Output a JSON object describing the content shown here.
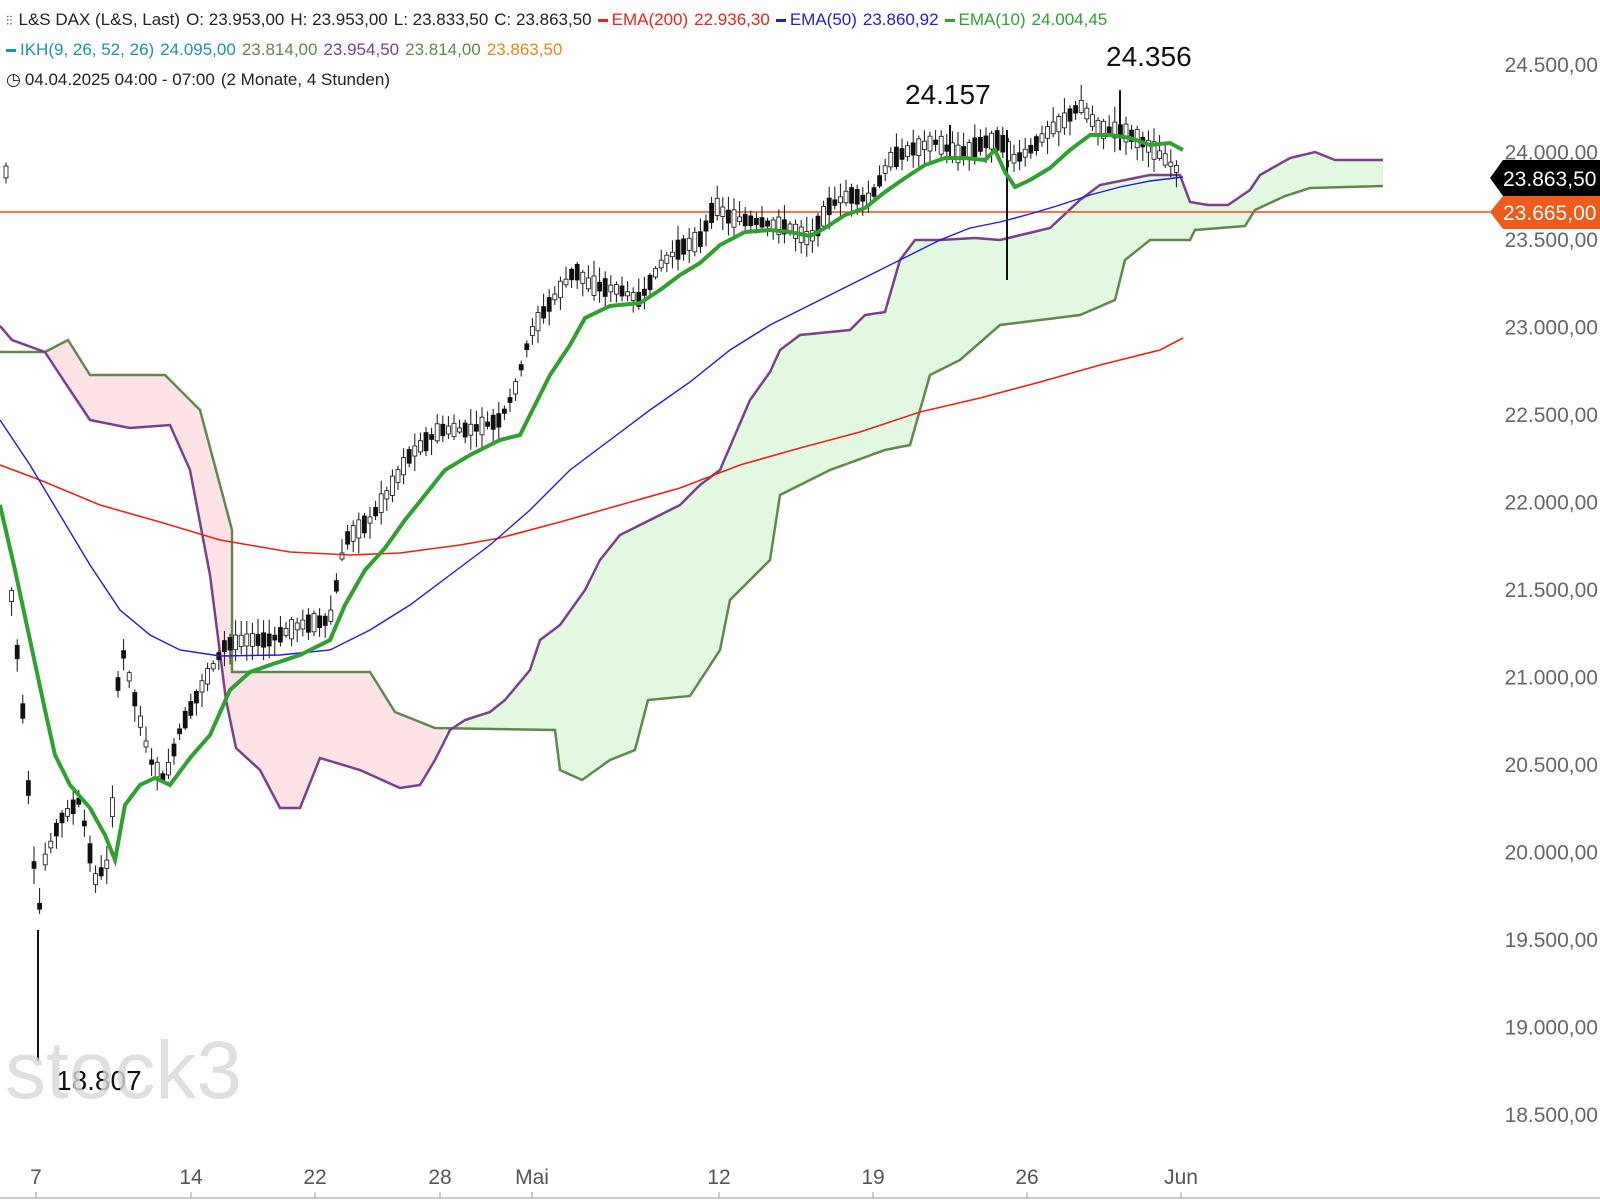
{
  "header": {
    "line1": {
      "instrument": "L&S DAX (L&S, Last)",
      "open": "O: 23.953,00",
      "high": "H: 23.953,00",
      "low": "L: 23.833,50",
      "close": "C: 23.863,50",
      "ema200_label": "EMA(200)",
      "ema200_value": "22.936,30",
      "ema50_label": "EMA(50)",
      "ema50_value": "23.860,92",
      "ema10_label": "EMA(10)",
      "ema10_value": "24.004,45"
    },
    "line2": {
      "ikh_label": "IKH(9, 26, 52, 26)",
      "v1": "24.095,00",
      "v2": "23.814,00",
      "v3": "23.954,50",
      "v4": "23.814,00",
      "v5": "23.863,50"
    },
    "line3": {
      "datetime": "04.04.2025 04:00 - 07:00",
      "range": "(2 Monate, 4 Stunden)"
    }
  },
  "watermark": "stock3",
  "colors": {
    "ema200": "#e8241a",
    "ema50": "#1d1ddc",
    "ema10": "#2ea12e",
    "senkou_a": "#7b3f8c",
    "senkou_b": "#5d8a4a",
    "cloud_bull": "#e3f8e0",
    "cloud_bear": "#fde3e6",
    "ikh_legend": "#1e90b4",
    "ikh_v2": "#5d8a4a",
    "ikh_v3": "#7b3f8c",
    "ikh_v4": "#5d8a4a",
    "ikh_v5": "#e08a1a",
    "hline": "#f04a1a",
    "last_price_tag": "#000000",
    "hline_tag": "#f05a1a"
  },
  "chart_data": {
    "type": "candlestick",
    "y_axis_ticks": [
      "24.500,00",
      "24.000,00",
      "23.500,00",
      "23.000,00",
      "22.500,00",
      "22.000,00",
      "21.500,00",
      "21.000,00",
      "20.500,00",
      "20.000,00",
      "19.500,00",
      "19.000,00",
      "18.500,00"
    ],
    "y_axis_values": [
      24500,
      24000,
      23500,
      23000,
      22500,
      22000,
      21500,
      21000,
      20500,
      20000,
      19500,
      19000,
      18500
    ],
    "ylim": [
      18500,
      24500
    ],
    "x_axis_ticks": [
      "7",
      "14",
      "22",
      "28",
      "Mai",
      "12",
      "19",
      "26",
      "Jun"
    ],
    "x_range": [
      "2025-04-07",
      "2025-06-02"
    ],
    "last_price": {
      "value": 23863.5,
      "label": "23.863,50"
    },
    "horizontal_line": {
      "value": 23665,
      "label": "23.665,00"
    },
    "annotations": [
      {
        "text": "24.157",
        "value": 24157
      },
      {
        "text": "24.356",
        "value": 24356
      },
      {
        "text": "18.807",
        "value": 18807
      }
    ],
    "series": [
      {
        "name": "EMA(200)",
        "values": [
          22200,
          21980,
          21820,
          21750,
          21760,
          21800,
          21900,
          22000,
          22120,
          22250,
          22400,
          22530,
          22700,
          22830,
          22936
        ]
      },
      {
        "name": "EMA(50)",
        "values": [
          22450,
          21700,
          21150,
          21140,
          21200,
          21550,
          22050,
          22600,
          23000,
          23300,
          23500,
          23650,
          23780,
          23861
        ]
      },
      {
        "name": "EMA(10)",
        "values": [
          21550,
          20600,
          19970,
          20600,
          21050,
          21250,
          22200,
          22450,
          23150,
          23200,
          23580,
          23550,
          24020,
          23900,
          24100,
          24004
        ]
      }
    ]
  }
}
